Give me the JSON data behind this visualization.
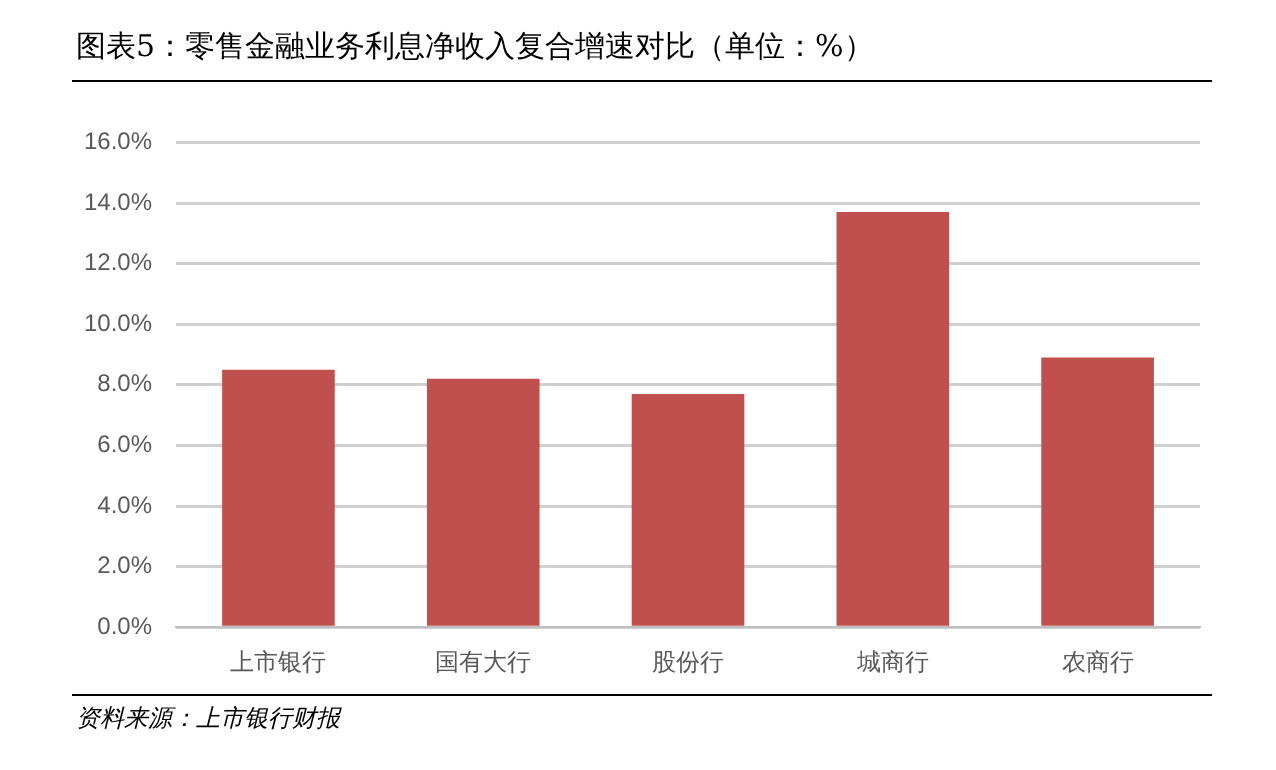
{
  "chart_data": {
    "type": "bar",
    "title": "图表5：零售金融业务利息净收入复合增速对比（单位：%）",
    "categories": [
      "上市银行",
      "国有大行",
      "股份行",
      "城商行",
      "农商行"
    ],
    "values": [
      8.5,
      8.2,
      7.7,
      13.7,
      8.9
    ],
    "color": "#c0504d",
    "ylim": [
      0,
      16
    ],
    "yticks": [
      {
        "value": 0,
        "label": "0.0%"
      },
      {
        "value": 2,
        "label": "2.0%"
      },
      {
        "value": 4,
        "label": "4.0%"
      },
      {
        "value": 6,
        "label": "6.0%"
      },
      {
        "value": 8,
        "label": "8.0%"
      },
      {
        "value": 10,
        "label": "10.0%"
      },
      {
        "value": 12,
        "label": "12.0%"
      },
      {
        "value": 14,
        "label": "14.0%"
      },
      {
        "value": 16,
        "label": "16.0%"
      }
    ],
    "grid": "y",
    "legend": false,
    "annotations": [
      "资料来源：上市银行财报"
    ]
  }
}
